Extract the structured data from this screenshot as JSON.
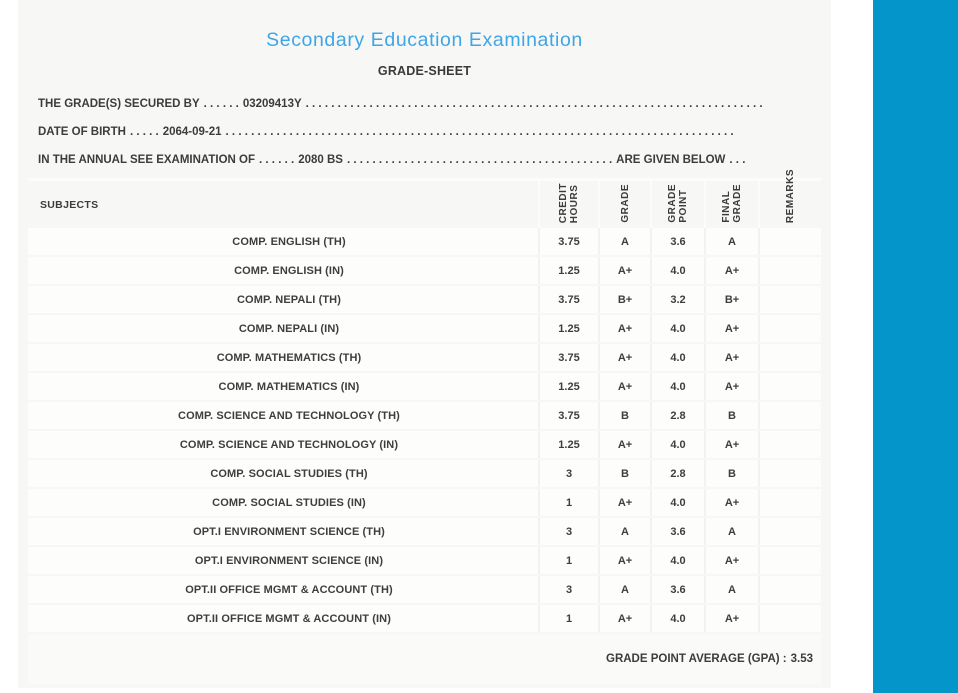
{
  "page": {
    "title": "Secondary Education Examination",
    "subtitle": "GRADE-SHEET"
  },
  "colors": {
    "title_blue": "#3ea5e8",
    "side_panel_blue": "#0495cb",
    "sheet_background": "#f7f7f5",
    "text_dark": "#3c3c3c"
  },
  "info_lines": [
    {
      "label": "THE GRADE(S) SECURED BY",
      "dots_before": ". . . . . .",
      "value": "03209413Y",
      "dots_after": ". . . . . . . . . . . . . . . . . . . . . . . . . . . . . . . . . . . . . . . . . . . . . . . . . . . . . . . . . . . . . . . . . . . . . . . .",
      "suffix": "",
      "dots_end": ""
    },
    {
      "label": "DATE OF BIRTH",
      "dots_before": ". . . . .",
      "value": "2064-09-21",
      "dots_after": ". . . . . . . . . . . . . . . . . . . . . . . . . . . . . . . . . . . . . . . . . . . . . . . . . . . . . . . . . . . . . . . . . . . . . . . . . . . . . . . .",
      "suffix": "",
      "dots_end": ""
    },
    {
      "label": "IN THE ANNUAL SEE EXAMINATION OF",
      "dots_before": ". . . . . .",
      "value": "2080 BS",
      "dots_after": ". . . . . . . . . . . . . . . . . . . . . . . . . . . . . . . . . . . . . . . . . .",
      "suffix": "ARE GIVEN BELOW",
      "dots_end": ". . ."
    }
  ],
  "table": {
    "subject_header": "SUBJECTS",
    "columns": [
      "CREDIT\nHOURS",
      "GRADE",
      "GRADE\nPOINT",
      "FINAL\nGRADE",
      "REMARKS"
    ],
    "rows": [
      {
        "subject": "COMP. ENGLISH (TH)",
        "credit_hours": "3.75",
        "grade": "A",
        "grade_point": "3.6",
        "final_grade": "A",
        "remarks": ""
      },
      {
        "subject": "COMP. ENGLISH (IN)",
        "credit_hours": "1.25",
        "grade": "A+",
        "grade_point": "4.0",
        "final_grade": "A+",
        "remarks": ""
      },
      {
        "subject": "COMP. NEPALI (TH)",
        "credit_hours": "3.75",
        "grade": "B+",
        "grade_point": "3.2",
        "final_grade": "B+",
        "remarks": ""
      },
      {
        "subject": "COMP. NEPALI (IN)",
        "credit_hours": "1.25",
        "grade": "A+",
        "grade_point": "4.0",
        "final_grade": "A+",
        "remarks": ""
      },
      {
        "subject": "COMP. MATHEMATICS (TH)",
        "credit_hours": "3.75",
        "grade": "A+",
        "grade_point": "4.0",
        "final_grade": "A+",
        "remarks": ""
      },
      {
        "subject": "COMP. MATHEMATICS (IN)",
        "credit_hours": "1.25",
        "grade": "A+",
        "grade_point": "4.0",
        "final_grade": "A+",
        "remarks": ""
      },
      {
        "subject": "COMP. SCIENCE AND TECHNOLOGY (TH)",
        "credit_hours": "3.75",
        "grade": "B",
        "grade_point": "2.8",
        "final_grade": "B",
        "remarks": ""
      },
      {
        "subject": "COMP. SCIENCE AND TECHNOLOGY (IN)",
        "credit_hours": "1.25",
        "grade": "A+",
        "grade_point": "4.0",
        "final_grade": "A+",
        "remarks": ""
      },
      {
        "subject": "COMP. SOCIAL STUDIES (TH)",
        "credit_hours": "3",
        "grade": "B",
        "grade_point": "2.8",
        "final_grade": "B",
        "remarks": ""
      },
      {
        "subject": "COMP. SOCIAL STUDIES (IN)",
        "credit_hours": "1",
        "grade": "A+",
        "grade_point": "4.0",
        "final_grade": "A+",
        "remarks": ""
      },
      {
        "subject": "OPT.I ENVIRONMENT SCIENCE (TH)",
        "credit_hours": "3",
        "grade": "A",
        "grade_point": "3.6",
        "final_grade": "A",
        "remarks": ""
      },
      {
        "subject": "OPT.I ENVIRONMENT SCIENCE (IN)",
        "credit_hours": "1",
        "grade": "A+",
        "grade_point": "4.0",
        "final_grade": "A+",
        "remarks": ""
      },
      {
        "subject": "OPT.II OFFICE MGMT & ACCOUNT (TH)",
        "credit_hours": "3",
        "grade": "A",
        "grade_point": "3.6",
        "final_grade": "A",
        "remarks": ""
      },
      {
        "subject": "OPT.II OFFICE MGMT & ACCOUNT (IN)",
        "credit_hours": "1",
        "grade": "A+",
        "grade_point": "4.0",
        "final_grade": "A+",
        "remarks": ""
      }
    ]
  },
  "footer": {
    "gpa_label": "GRADE POINT AVERAGE (GPA) :",
    "gpa_value": "3.53"
  }
}
